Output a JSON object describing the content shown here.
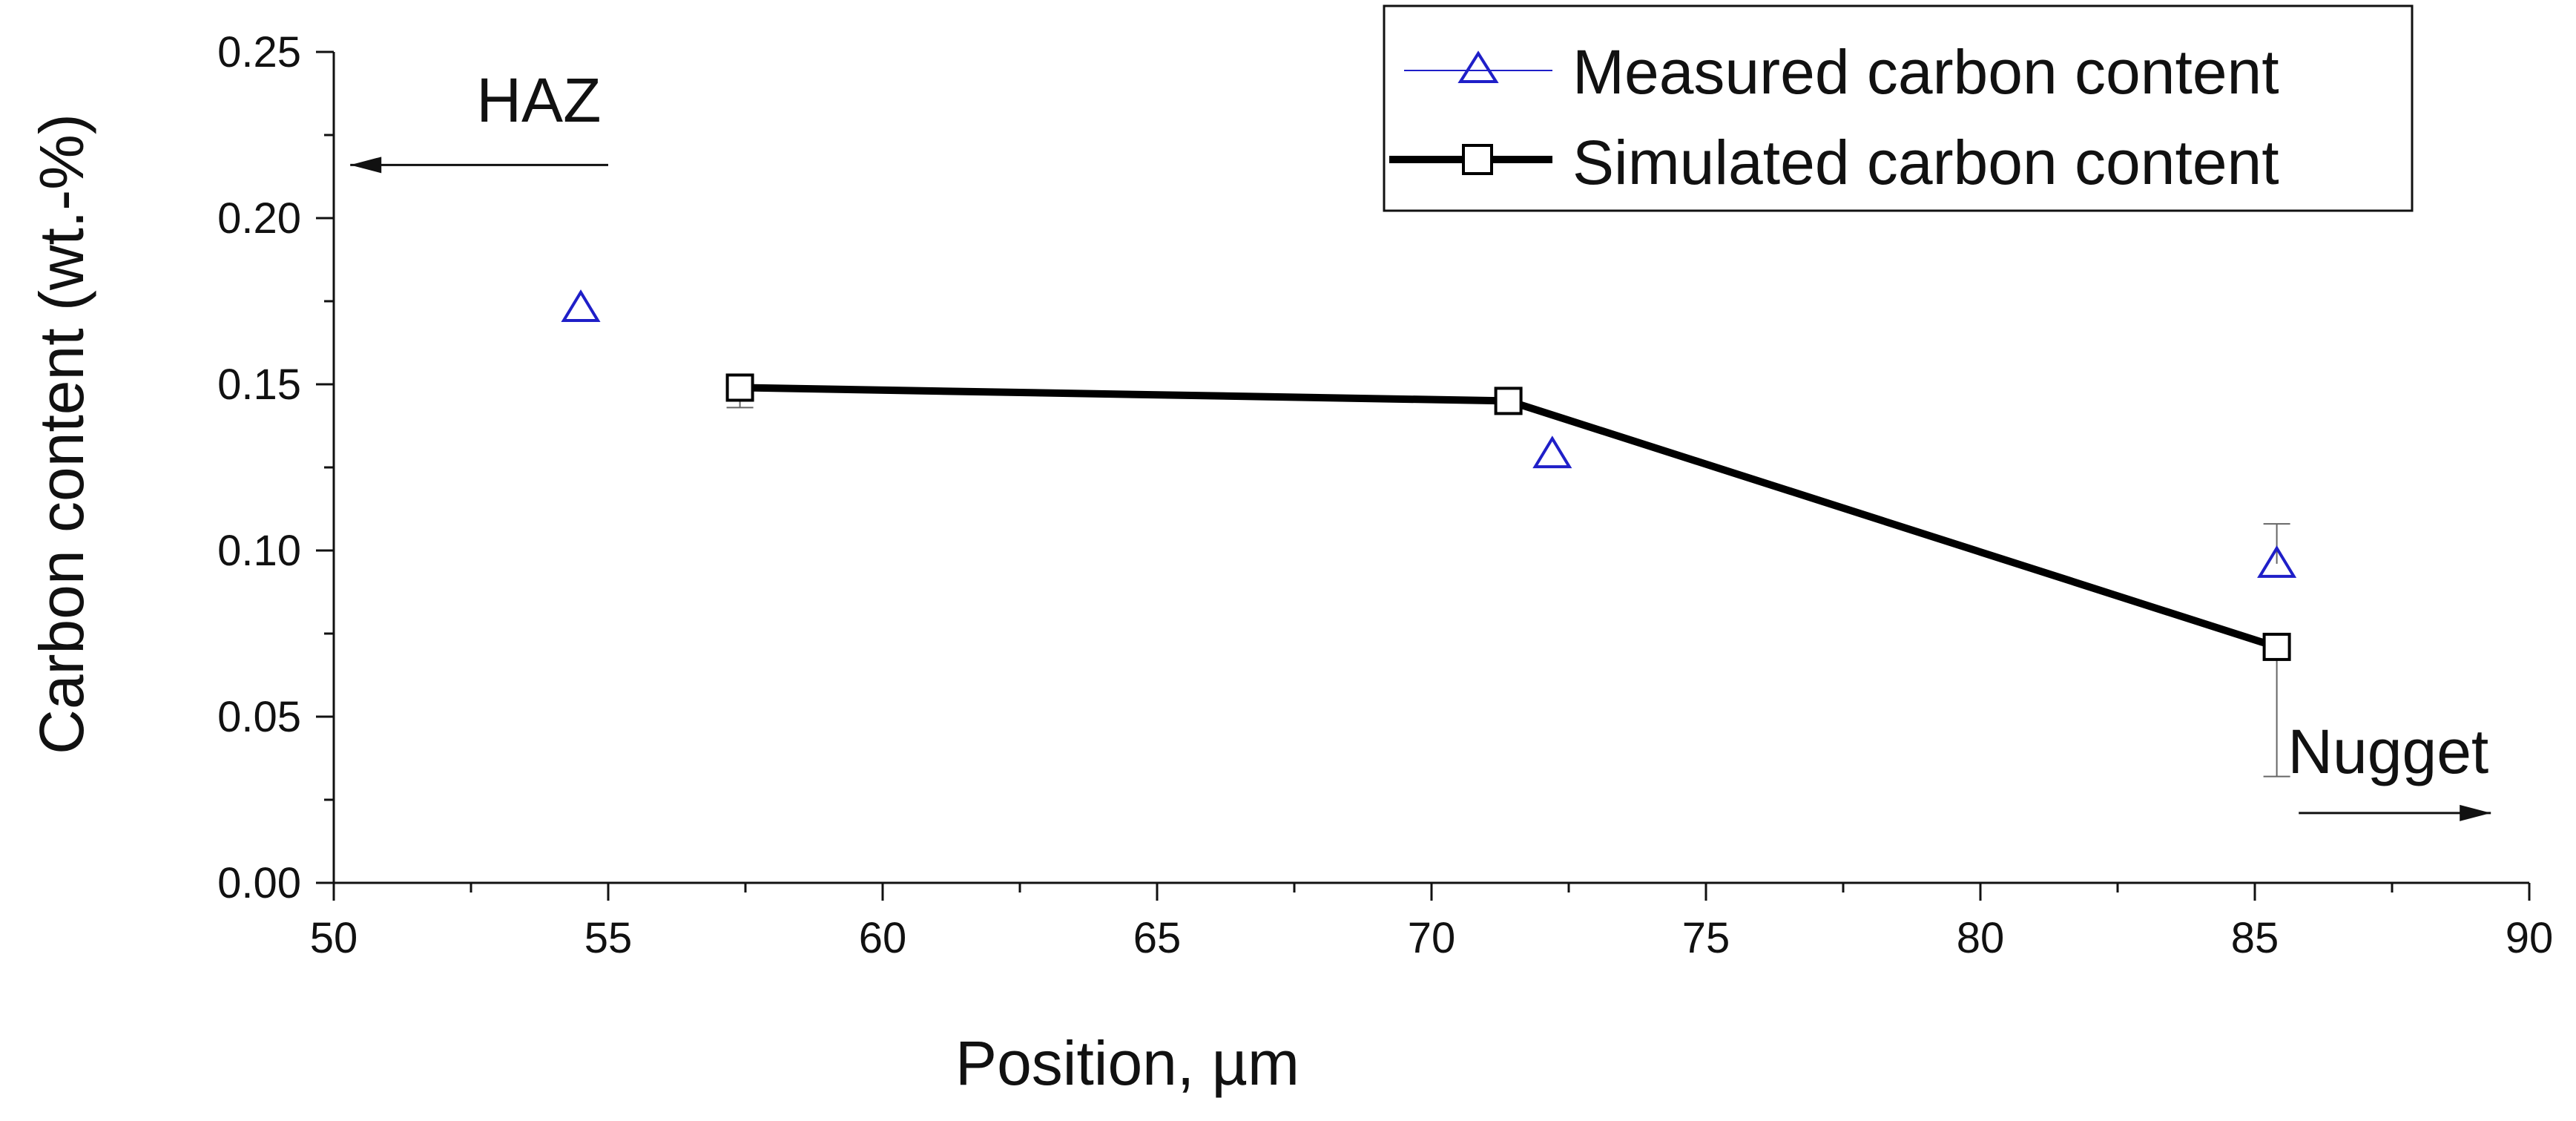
{
  "chart_data": {
    "type": "line",
    "title": "",
    "xlabel": "Position, µm",
    "ylabel": "Carbon content (wt.-%)",
    "xlim": [
      50,
      90
    ],
    "ylim": [
      0,
      0.25
    ],
    "x_ticks": [
      "50",
      "55",
      "60",
      "65",
      "70",
      "75",
      "80",
      "85",
      "90"
    ],
    "y_ticks": [
      "0.00",
      "0.05",
      "0.10",
      "0.15",
      "0.20",
      "0.25"
    ],
    "grid": false,
    "legend_position": "top-right",
    "series": [
      {
        "name": "Measured carbon content",
        "marker": "open-triangle",
        "line": false,
        "color": "#1f1fc8",
        "points": [
          {
            "x": 54.5,
            "y": 0.173
          },
          {
            "x": 72.2,
            "y": 0.129
          },
          {
            "x": 85.4,
            "y": 0.096,
            "err_low": 0.0,
            "err_high": 0.012
          }
        ]
      },
      {
        "name": "Simulated carbon content",
        "marker": "open-square",
        "line": true,
        "color": "#000000",
        "points": [
          {
            "x": 57.4,
            "y": 0.149,
            "err_low": 0.006,
            "err_high": 0.003
          },
          {
            "x": 71.4,
            "y": 0.145,
            "err_low": 0.002,
            "err_high": 0.002
          },
          {
            "x": 85.4,
            "y": 0.071,
            "err_low": 0.039,
            "err_high": 0.0
          }
        ]
      }
    ],
    "annotations": [
      {
        "text": "HAZ",
        "direction": "left",
        "x_text": 52.6,
        "y_text": 0.229,
        "arrow_y": 0.216,
        "arrow_x_from": 55.0,
        "arrow_x_to": 50.3
      },
      {
        "text": "Nugget",
        "direction": "right",
        "x_text": 85.6,
        "y_text": 0.033,
        "arrow_y": 0.021,
        "arrow_x_from": 85.8,
        "arrow_x_to": 89.3
      }
    ]
  },
  "colors": {
    "measured": "#1f1fc8",
    "simulated": "#000000",
    "axis": "#111111"
  }
}
